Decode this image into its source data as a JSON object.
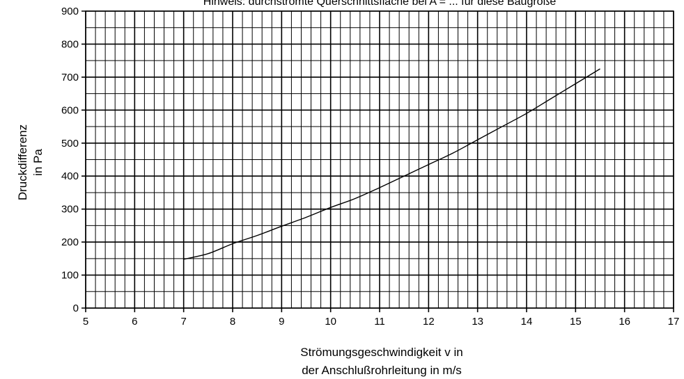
{
  "chart_data": {
    "type": "line",
    "title": "Hinweis: durchströmte Querschnittsfläche bei A = ... für diese Baugröße",
    "xlabel": [
      "Strömungsgeschwindigkeit v in",
      "der Anschlußrohrleitung in m/s"
    ],
    "ylabel": [
      "Druckdifferenz",
      "in Pa"
    ],
    "xlim": [
      5,
      17
    ],
    "ylim": [
      0,
      900
    ],
    "x_ticks": [
      "5",
      "6",
      "7",
      "8",
      "9",
      "10",
      "11",
      "12",
      "13",
      "14",
      "15",
      "16",
      "17"
    ],
    "y_ticks": [
      "0",
      "100",
      "200",
      "300",
      "400",
      "500",
      "600",
      "700",
      "800",
      "900"
    ],
    "grid": true,
    "minor_grid": {
      "x_step": 0.2,
      "y_step": 50
    },
    "line_color": "#000000",
    "series": [
      {
        "x": [
          7.0,
          7.5,
          8.0,
          8.5,
          9.0,
          9.5,
          10.0,
          10.5,
          11.0,
          11.5,
          12.0,
          12.5,
          13.0,
          13.5,
          14.0,
          14.5,
          15.0,
          15.5
        ],
        "y": [
          148,
          165,
          195,
          220,
          248,
          275,
          305,
          332,
          365,
          400,
          435,
          470,
          510,
          550,
          590,
          635,
          680,
          725
        ]
      }
    ]
  }
}
